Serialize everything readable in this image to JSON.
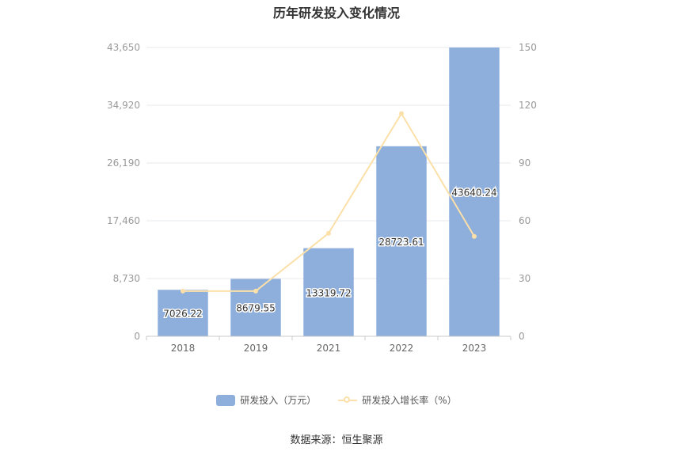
{
  "chart_data": {
    "type": "bar",
    "title": "历年研发投入变化情况",
    "categories": [
      "2018",
      "2019",
      "2021",
      "2022",
      "2023"
    ],
    "series": [
      {
        "name": "研发投入（万元）",
        "type": "bar",
        "axis": "left",
        "values": [
          7026.22,
          8679.55,
          13319.72,
          28723.61,
          43640.24
        ],
        "labels": [
          "7026.22",
          "8679.55",
          "13319.72",
          "28723.61",
          "43640.24"
        ]
      },
      {
        "name": "研发投入增长率（%）",
        "type": "line",
        "axis": "right",
        "values": [
          23.5,
          23.5,
          53.5,
          115.7,
          51.9
        ]
      }
    ],
    "y_left": {
      "ylim": [
        0,
        43650
      ],
      "ticks": [
        "0",
        "8,730",
        "17,460",
        "26,190",
        "34,920",
        "43,650"
      ]
    },
    "y_right": {
      "ylim": [
        0,
        150
      ],
      "ticks": [
        "0",
        "30",
        "60",
        "90",
        "120",
        "150"
      ]
    },
    "grid": true,
    "legend_position": "bottom"
  },
  "colors": {
    "bar": "#8eaedb",
    "line": "#fce0a9",
    "grid": "#e6e8ee",
    "axis": "#999999"
  },
  "source": "数据来源：恒生聚源"
}
